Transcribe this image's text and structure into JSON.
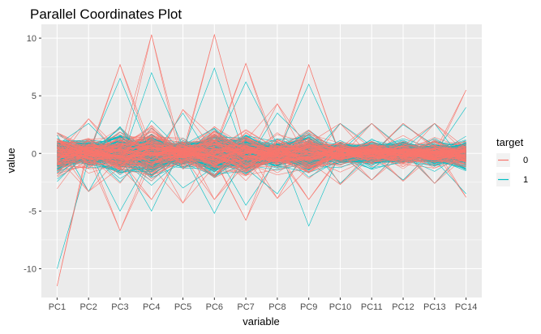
{
  "chart_data": {
    "type": "line",
    "subtype": "parallel-coordinates",
    "title": "Parallel Coordinates Plot",
    "xlabel": "variable",
    "ylabel": "value",
    "categories": [
      "PC1",
      "PC2",
      "PC3",
      "PC4",
      "PC5",
      "PC6",
      "PC7",
      "PC8",
      "PC9",
      "PC10",
      "PC11",
      "PC12",
      "PC13",
      "PC14"
    ],
    "ylim": [
      -12.5,
      11.2
    ],
    "y_ticks": [
      -10,
      -5,
      0,
      5,
      10
    ],
    "y_tick_labels": [
      "-10",
      "-5",
      "0",
      "5",
      "10"
    ],
    "grid": true,
    "panel_background": "#ebebeb",
    "grid_color": "#ffffff",
    "legend": {
      "title": "target",
      "position": "right",
      "entries": [
        {
          "label": "0",
          "color": "#f8766d"
        },
        {
          "label": "1",
          "color": "#00bfc4"
        }
      ]
    },
    "series": [
      {
        "name": "0",
        "color": "#f8766d",
        "approx_max": [
          1.8,
          3.0,
          7.7,
          10.3,
          3.8,
          10.3,
          7.8,
          4.3,
          7.7,
          2.6,
          2.6,
          2.6,
          2.6,
          5.5
        ],
        "approx_min": [
          -11.5,
          -3.3,
          -6.7,
          -4.0,
          -4.3,
          -4.0,
          -5.8,
          -3.9,
          -4.0,
          -2.7,
          -2.3,
          -2.4,
          -2.6,
          -3.8
        ],
        "spread_sd": [
          1.6,
          1.0,
          1.6,
          1.8,
          1.0,
          1.7,
          1.5,
          1.0,
          1.5,
          0.8,
          0.8,
          0.8,
          0.8,
          1.0
        ]
      },
      {
        "name": "1",
        "color": "#00bfc4",
        "approx_max": [
          1.8,
          2.6,
          6.5,
          7.0,
          3.5,
          7.4,
          6.2,
          3.5,
          6.0,
          2.6,
          2.6,
          2.5,
          2.6,
          4.0
        ],
        "approx_min": [
          -10.0,
          -3.3,
          -5.0,
          -5.0,
          -3.0,
          -5.2,
          -4.5,
          -3.5,
          -6.3,
          -2.6,
          -2.3,
          -2.3,
          -2.6,
          -3.5
        ],
        "spread_sd": [
          1.7,
          0.9,
          1.5,
          1.6,
          0.9,
          1.6,
          1.4,
          0.9,
          1.4,
          0.8,
          0.8,
          0.8,
          0.8,
          1.0
        ]
      }
    ],
    "n_lines_per_series": 170
  }
}
